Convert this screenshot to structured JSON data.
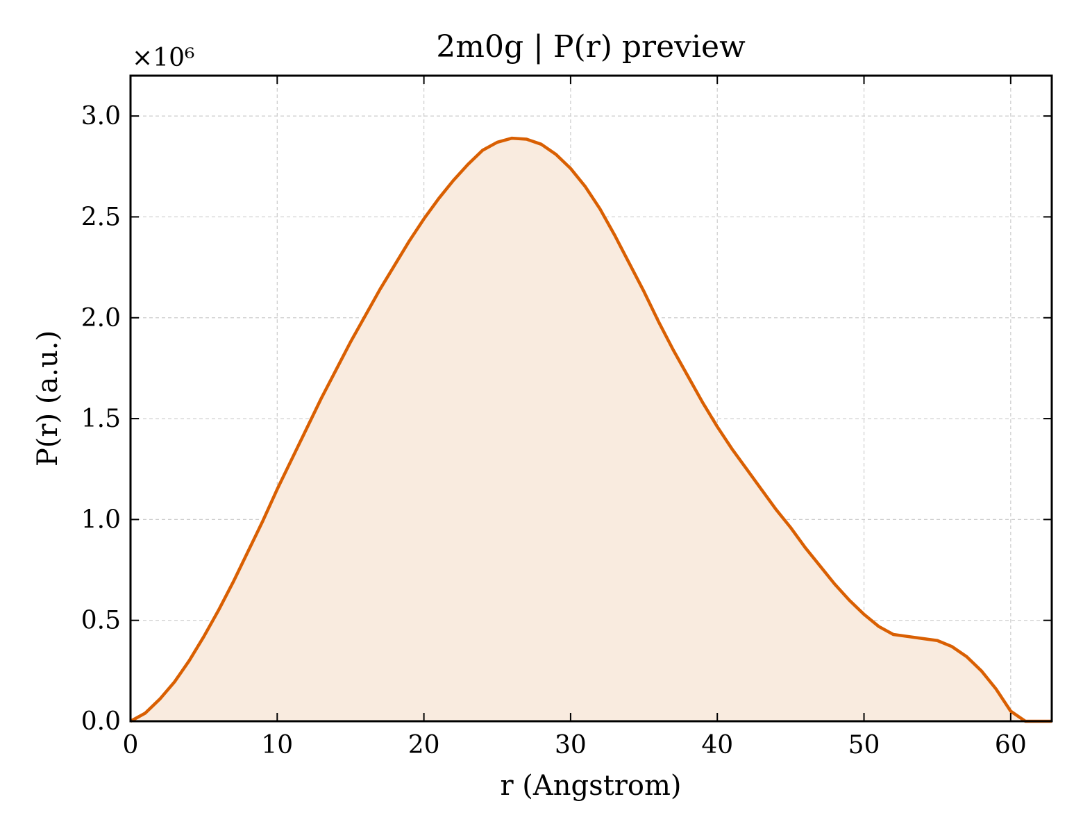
{
  "chart_data": {
    "type": "area",
    "title": "2m0g | P(r) preview",
    "xlabel": "r (Angstrom)",
    "ylabel": "P(r) (a.u.)",
    "y_multiplier_label": "×10⁶",
    "xlim": [
      0,
      62.8
    ],
    "ylim": [
      0,
      3.2
    ],
    "x_ticks": [
      0,
      10,
      20,
      30,
      40,
      50,
      60
    ],
    "x_tick_labels": [
      "0",
      "10",
      "20",
      "30",
      "40",
      "50",
      "60"
    ],
    "y_ticks": [
      0.0,
      0.5,
      1.0,
      1.5,
      2.0,
      2.5,
      3.0
    ],
    "y_tick_labels": [
      "0.0",
      "0.5",
      "1.0",
      "1.5",
      "2.0",
      "2.5",
      "3.0"
    ],
    "grid": true,
    "line_color": "#d95f02",
    "fill_color": "#f9ebdf",
    "series": [
      {
        "x": [
          0,
          1,
          2,
          3,
          4,
          5,
          6,
          7,
          8,
          9,
          10,
          11,
          12,
          13,
          14,
          15,
          16,
          17,
          18,
          19,
          20,
          21,
          22,
          23,
          24,
          25,
          26,
          27,
          28,
          29,
          30,
          31,
          32,
          33,
          34,
          35,
          36,
          37,
          38,
          39,
          40,
          41,
          42,
          43,
          44,
          45,
          46,
          47,
          48,
          49,
          50,
          51,
          52,
          53,
          54,
          55,
          56,
          57,
          58,
          59,
          60,
          61,
          62,
          62.8
        ],
        "y": [
          0.0,
          0.04,
          0.11,
          0.195,
          0.3,
          0.42,
          0.55,
          0.69,
          0.84,
          0.99,
          1.15,
          1.3,
          1.45,
          1.6,
          1.74,
          1.88,
          2.01,
          2.14,
          2.26,
          2.38,
          2.49,
          2.59,
          2.68,
          2.76,
          2.83,
          2.87,
          2.89,
          2.885,
          2.86,
          2.81,
          2.74,
          2.65,
          2.54,
          2.41,
          2.27,
          2.13,
          1.98,
          1.84,
          1.71,
          1.58,
          1.46,
          1.35,
          1.25,
          1.15,
          1.05,
          0.96,
          0.86,
          0.77,
          0.68,
          0.6,
          0.53,
          0.47,
          0.43,
          0.42,
          0.41,
          0.4,
          0.37,
          0.32,
          0.25,
          0.16,
          0.05,
          0.0,
          0.0,
          0.0
        ]
      }
    ]
  }
}
